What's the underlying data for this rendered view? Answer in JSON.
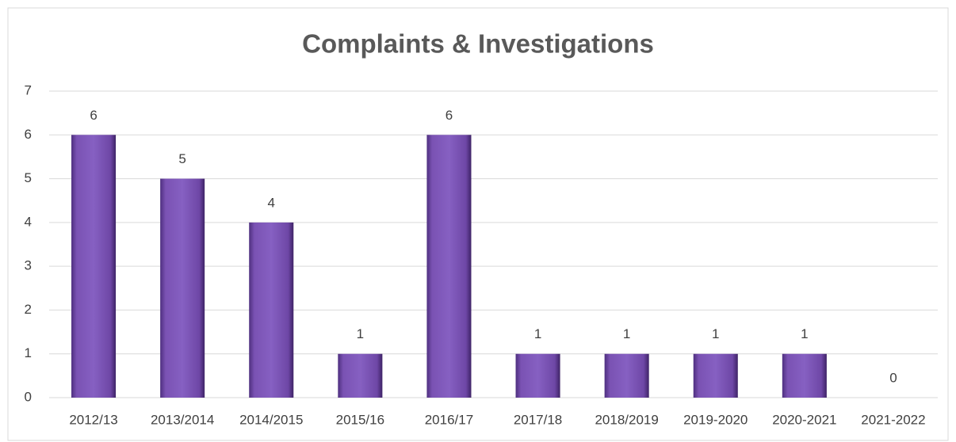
{
  "chart_data": {
    "type": "bar",
    "title": "Complaints & Investigations",
    "categories": [
      "2012/13",
      "2013/2014",
      "2014/2015",
      "2015/16",
      "2016/17",
      "2017/18",
      "2018/2019",
      "2019-2020",
      "2020-2021",
      "2021-2022"
    ],
    "values": [
      6,
      5,
      4,
      1,
      6,
      1,
      1,
      1,
      1,
      0
    ],
    "color": "#7e57b7",
    "ylim": [
      0,
      7
    ],
    "yticks": [
      0,
      1,
      2,
      3,
      4,
      5,
      6,
      7
    ],
    "grid": true
  }
}
